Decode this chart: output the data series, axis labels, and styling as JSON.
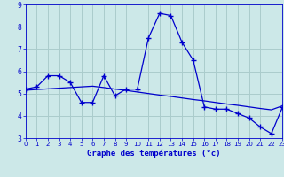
{
  "xlabel": "Graphe des températures (°c)",
  "background_color": "#cce8e8",
  "grid_color": "#aacccc",
  "line_color": "#0000cc",
  "x_hours": [
    0,
    1,
    2,
    3,
    4,
    5,
    6,
    7,
    8,
    9,
    10,
    11,
    12,
    13,
    14,
    15,
    16,
    17,
    18,
    19,
    20,
    21,
    22,
    23
  ],
  "temp_actual": [
    5.2,
    5.3,
    5.8,
    5.8,
    5.5,
    4.6,
    4.6,
    5.8,
    4.9,
    5.2,
    5.2,
    7.5,
    8.6,
    8.5,
    7.3,
    6.5,
    4.4,
    4.3,
    4.3,
    4.1,
    3.9,
    3.5,
    3.2,
    4.4
  ],
  "temp_trend": [
    5.15,
    5.18,
    5.21,
    5.24,
    5.27,
    5.3,
    5.33,
    5.27,
    5.2,
    5.14,
    5.07,
    5.0,
    4.93,
    4.87,
    4.8,
    4.73,
    4.67,
    4.6,
    4.53,
    4.47,
    4.4,
    4.33,
    4.27,
    4.45
  ],
  "ylim": [
    3,
    9
  ],
  "xlim": [
    0,
    23
  ],
  "yticks": [
    3,
    4,
    5,
    6,
    7,
    8,
    9
  ],
  "xtick_labels": [
    "0",
    "1",
    "2",
    "3",
    "4",
    "5",
    "6",
    "7",
    "8",
    "9",
    "10",
    "11",
    "12",
    "13",
    "14",
    "15",
    "16",
    "17",
    "18",
    "19",
    "20",
    "21",
    "22",
    "23"
  ],
  "xtick_fontsize": 5,
  "ytick_fontsize": 5.5,
  "xlabel_fontsize": 6.5
}
